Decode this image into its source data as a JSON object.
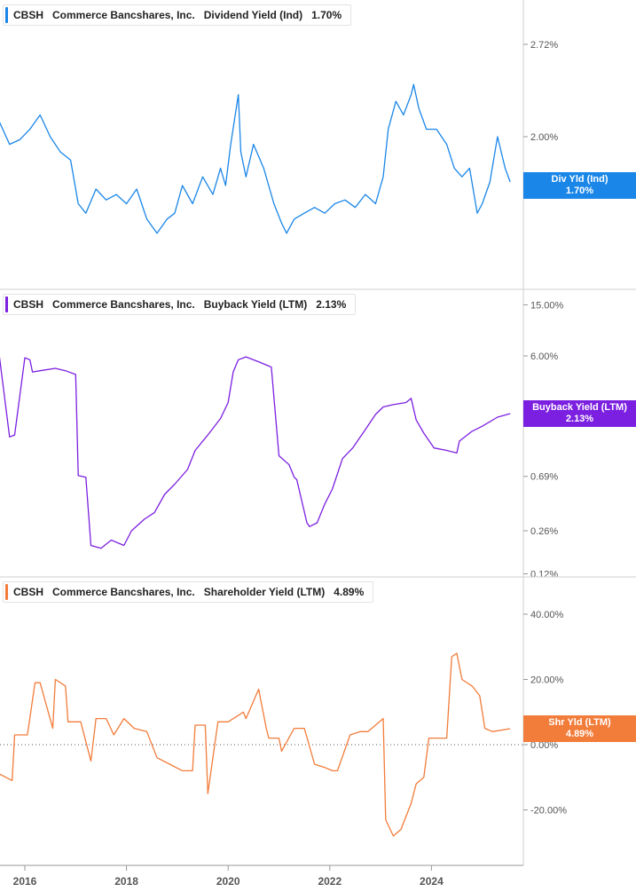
{
  "chart_data": [
    {
      "type": "line",
      "ticker": "CBSH",
      "company": "Commerce Bancshares, Inc.",
      "metric": "Dividend Yield (Ind)",
      "latest_value": "1.70%",
      "flag_label": "Div Yld (Ind)",
      "flag_value": "1.70%",
      "color": "#1a86e8",
      "y_scale": "log",
      "yticks": [
        {
          "v": 2.72,
          "label": "2.72%"
        },
        {
          "v": 2.0,
          "label": "2.00%"
        }
      ],
      "series": [
        {
          "x": [
            2015.5,
            2015.7,
            2015.9,
            2016.1,
            2016.3,
            2016.5,
            2016.7,
            2016.9,
            2017.05,
            2017.2,
            2017.4,
            2017.6,
            2017.8,
            2018.0,
            2018.2,
            2018.4,
            2018.6,
            2018.8,
            2018.95,
            2019.1,
            2019.3,
            2019.5,
            2019.7,
            2019.85,
            2019.95,
            2020.05,
            2020.2,
            2020.25,
            2020.35,
            2020.5,
            2020.7,
            2020.9,
            2021.05,
            2021.15,
            2021.3,
            2021.5,
            2021.7,
            2021.9,
            2022.1,
            2022.3,
            2022.5,
            2022.7,
            2022.9,
            2023.05,
            2023.15,
            2023.3,
            2023.45,
            2023.6,
            2023.65,
            2023.75,
            2023.9,
            2024.1,
            2024.3,
            2024.45,
            2024.6,
            2024.75,
            2024.9,
            2025.0,
            2025.15,
            2025.3,
            2025.45,
            2025.55
          ],
          "values": [
            2.1,
            1.95,
            1.98,
            2.05,
            2.15,
            2.0,
            1.9,
            1.85,
            1.6,
            1.55,
            1.68,
            1.62,
            1.65,
            1.6,
            1.68,
            1.52,
            1.45,
            1.52,
            1.55,
            1.7,
            1.6,
            1.75,
            1.65,
            1.8,
            1.7,
            1.95,
            2.3,
            1.9,
            1.75,
            1.95,
            1.8,
            1.6,
            1.5,
            1.45,
            1.52,
            1.55,
            1.58,
            1.55,
            1.6,
            1.62,
            1.58,
            1.65,
            1.6,
            1.75,
            2.05,
            2.25,
            2.15,
            2.3,
            2.38,
            2.2,
            2.05,
            2.05,
            1.95,
            1.8,
            1.75,
            1.8,
            1.55,
            1.6,
            1.72,
            2.0,
            1.8,
            1.72
          ]
        }
      ]
    },
    {
      "type": "line",
      "ticker": "CBSH",
      "company": "Commerce Bancshares, Inc.",
      "metric": "Buyback Yield (LTM)",
      "latest_value": "2.13%",
      "flag_label": "Buyback Yield (LTM)",
      "flag_value": "2.13%",
      "color": "#7b1fe0",
      "y_scale": "log",
      "yticks": [
        {
          "v": 15.0,
          "label": "15.00%"
        },
        {
          "v": 6.0,
          "label": "6.00%"
        },
        {
          "v": 0.69,
          "label": "0.69%"
        },
        {
          "v": 0.26,
          "label": "0.26%"
        },
        {
          "v": 0.12,
          "label": "0.12%"
        }
      ],
      "series": [
        {
          "x": [
            2015.5,
            2015.7,
            2015.8,
            2016.0,
            2016.1,
            2016.15,
            2016.3,
            2016.6,
            2016.8,
            2017.0,
            2017.05,
            2017.2,
            2017.3,
            2017.5,
            2017.7,
            2017.95,
            2018.1,
            2018.35,
            2018.55,
            2018.75,
            2018.95,
            2019.2,
            2019.35,
            2019.6,
            2019.85,
            2020.0,
            2020.1,
            2020.2,
            2020.35,
            2020.6,
            2020.8,
            2020.85,
            2021.0,
            2021.2,
            2021.3,
            2021.35,
            2021.55,
            2021.6,
            2021.75,
            2021.9,
            2022.05,
            2022.25,
            2022.45,
            2022.7,
            2022.9,
            2023.05,
            2023.25,
            2023.5,
            2023.6,
            2023.7,
            2023.85,
            2024.05,
            2024.3,
            2024.5,
            2024.55,
            2024.8,
            2025.0,
            2025.3,
            2025.55
          ],
          "values": [
            5.9,
            1.4,
            1.45,
            5.8,
            5.6,
            4.5,
            4.6,
            4.8,
            4.6,
            4.3,
            0.7,
            0.68,
            0.2,
            0.19,
            0.22,
            0.2,
            0.26,
            0.32,
            0.36,
            0.5,
            0.6,
            0.78,
            1.1,
            1.45,
            1.95,
            2.6,
            4.5,
            5.6,
            5.9,
            5.4,
            5.0,
            4.9,
            1.0,
            0.85,
            0.68,
            0.65,
            0.3,
            0.28,
            0.3,
            0.42,
            0.55,
            0.95,
            1.15,
            1.6,
            2.1,
            2.4,
            2.5,
            2.6,
            2.8,
            1.9,
            1.5,
            1.15,
            1.1,
            1.05,
            1.3,
            1.55,
            1.7,
            2.0,
            2.13
          ]
        }
      ]
    },
    {
      "type": "line",
      "ticker": "CBSH",
      "company": "Commerce Bancshares, Inc.",
      "metric": "Shareholder Yield (LTM)",
      "latest_value": "4.89%",
      "flag_label": "Shr Yld (LTM)",
      "flag_value": "4.89%",
      "color": "#f27c3a",
      "y_scale": "linear",
      "yticks": [
        {
          "v": 40,
          "label": "40.00%"
        },
        {
          "v": 20,
          "label": "20.00%"
        },
        {
          "v": 0,
          "label": "0.00%"
        },
        {
          "v": -20,
          "label": "-20.00%"
        }
      ],
      "zero_line": true,
      "series": [
        {
          "x": [
            2015.5,
            2015.75,
            2015.8,
            2016.05,
            2016.2,
            2016.3,
            2016.55,
            2016.6,
            2016.8,
            2016.85,
            2017.0,
            2017.1,
            2017.3,
            2017.4,
            2017.6,
            2017.75,
            2017.95,
            2018.15,
            2018.4,
            2018.6,
            2018.85,
            2019.1,
            2019.3,
            2019.35,
            2019.55,
            2019.6,
            2019.8,
            2020.0,
            2020.3,
            2020.35,
            2020.6,
            2020.75,
            2020.8,
            2021.0,
            2021.05,
            2021.3,
            2021.5,
            2021.7,
            2021.9,
            2022.05,
            2022.15,
            2022.4,
            2022.6,
            2022.75,
            2022.9,
            2023.05,
            2023.1,
            2023.25,
            2023.4,
            2023.55,
            2023.6,
            2023.7,
            2023.85,
            2023.95,
            2024.1,
            2024.2,
            2024.3,
            2024.4,
            2024.5,
            2024.6,
            2024.8,
            2024.95,
            2025.05,
            2025.2,
            2025.55
          ],
          "values": [
            -9,
            -11,
            3,
            3,
            19,
            19,
            5,
            20,
            18,
            7,
            7,
            7,
            -5,
            8,
            8,
            3,
            8,
            5,
            4,
            -4,
            -6,
            -8,
            -8,
            6,
            6,
            -15,
            7,
            7,
            10,
            8,
            17,
            5,
            2,
            2,
            -2,
            5,
            5,
            -6,
            -7,
            -8,
            -8,
            3,
            4,
            4,
            6,
            8,
            -23,
            -28,
            -26,
            -20,
            -18,
            -12,
            -10,
            2,
            2,
            2,
            2,
            27,
            28,
            20,
            18,
            15,
            5,
            4,
            4.89
          ]
        }
      ]
    }
  ],
  "x_axis": {
    "ticks": [
      {
        "v": 2016,
        "label": "2016"
      },
      {
        "v": 2018,
        "label": "2018"
      },
      {
        "v": 2020,
        "label": "2020"
      },
      {
        "v": 2022,
        "label": "2022"
      },
      {
        "v": 2024,
        "label": "2024"
      }
    ]
  }
}
